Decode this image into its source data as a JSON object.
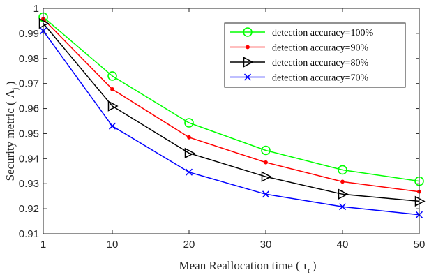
{
  "chart_data": {
    "type": "line",
    "x": [
      1,
      10,
      20,
      30,
      40,
      50
    ],
    "xticks": [
      1,
      10,
      20,
      30,
      40,
      50
    ],
    "yticks": [
      0.91,
      0.92,
      0.93,
      0.94,
      0.95,
      0.96,
      0.97,
      0.98,
      0.99,
      1
    ],
    "ytick_labels": [
      "0.91",
      "0.92",
      "0.93",
      "0.94",
      "0.95",
      "0.96",
      "0.97",
      "0.98",
      "0.99",
      "1"
    ],
    "xlim": [
      1,
      50
    ],
    "ylim": [
      0.91,
      1
    ],
    "xlabel": "Mean Reallocation time ( τ",
    "xlabel_sub": "r",
    "xlabel_end": ")",
    "ylabel": "Security metric ( Λ",
    "ylabel_sub": "j",
    "ylabel_end": ")",
    "grid": false,
    "legend_position": "top-right",
    "series": [
      {
        "name": "detection accuracy=100%",
        "color": "#00ff00",
        "marker": "circle",
        "values": [
          0.9965,
          0.973,
          0.9543,
          0.9433,
          0.9355,
          0.931
        ]
      },
      {
        "name": "detection accuracy=90%",
        "color": "#ff0000",
        "marker": "dot",
        "values": [
          0.9958,
          0.9677,
          0.9485,
          0.9385,
          0.9308,
          0.9268
        ]
      },
      {
        "name": "detection accuracy=80%",
        "color": "#000000",
        "marker": "triangle-right",
        "values": [
          0.994,
          0.961,
          0.9422,
          0.9328,
          0.9258,
          0.923
        ]
      },
      {
        "name": "detection accuracy=70%",
        "color": "#0000ff",
        "marker": "x",
        "values": [
          0.991,
          0.953,
          0.9346,
          0.9258,
          0.9208,
          0.9176
        ]
      }
    ]
  }
}
